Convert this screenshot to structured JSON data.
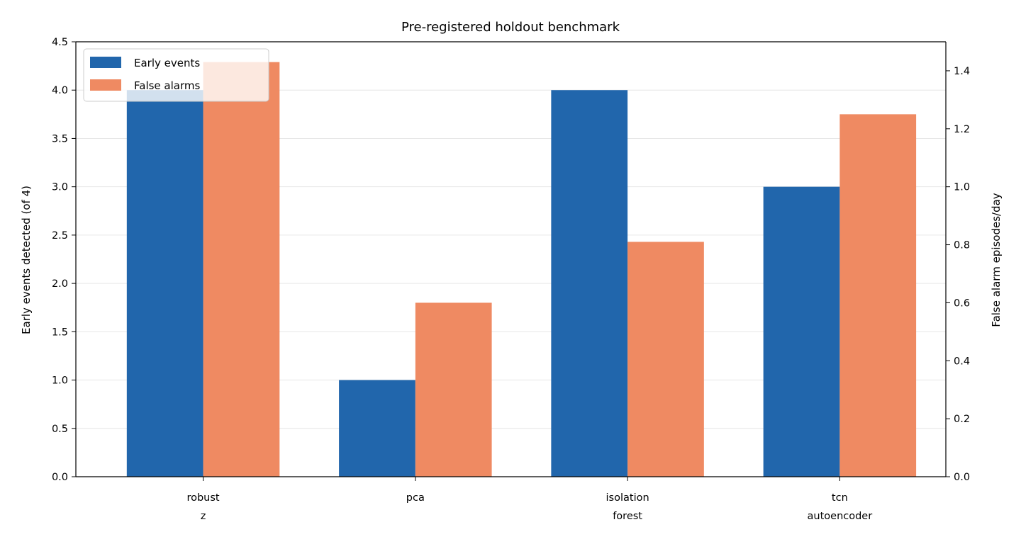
{
  "chart_data": {
    "type": "bar",
    "title": "Pre-registered holdout benchmark",
    "categories": [
      [
        "robust",
        "z"
      ],
      [
        "pca"
      ],
      [
        "isolation",
        "forest"
      ],
      [
        "tcn",
        "autoencoder"
      ]
    ],
    "series": [
      {
        "name": "Early events",
        "axis": "left",
        "color": "#2166ac",
        "values": [
          4,
          1,
          4,
          3
        ]
      },
      {
        "name": "False alarms",
        "axis": "right",
        "color": "#ef8a62",
        "values": [
          1.43,
          0.6,
          0.81,
          1.25
        ]
      }
    ],
    "ylabel": "Early events detected (of 4)",
    "ylabel_right": "False alarm episodes/day",
    "ylim": [
      0,
      4.5
    ],
    "ylim_right": [
      0,
      1.5
    ],
    "yticks": [
      "0.0",
      "0.5",
      "1.0",
      "1.5",
      "2.0",
      "2.5",
      "3.0",
      "3.5",
      "4.0",
      "4.5"
    ],
    "yticks_right": [
      "0.0",
      "0.2",
      "0.4",
      "0.6",
      "0.8",
      "1.0",
      "1.2",
      "1.4"
    ],
    "grid": "horizontal, light",
    "legend_position": "top-left"
  }
}
